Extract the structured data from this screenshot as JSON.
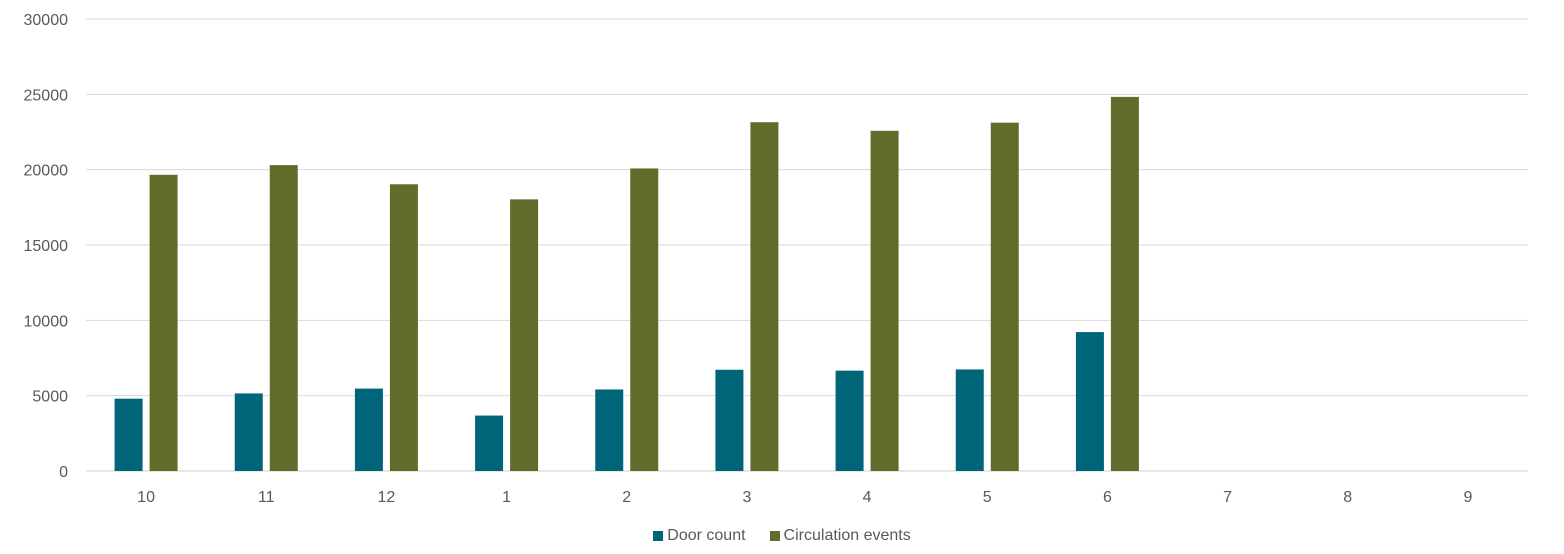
{
  "chart_data": {
    "type": "bar",
    "title": "",
    "xlabel": "",
    "ylabel": "",
    "categories": [
      "10",
      "11",
      "12",
      "1",
      "2",
      "3",
      "4",
      "5",
      "6",
      "7",
      "8",
      "9"
    ],
    "series": [
      {
        "name": "Door count",
        "color": "#006579",
        "values": [
          4800,
          5150,
          5470,
          3680,
          5410,
          6720,
          6660,
          6740,
          9220,
          null,
          null,
          null
        ]
      },
      {
        "name": "Circulation events",
        "color": "#636B2A",
        "values": [
          19660,
          20300,
          19030,
          18030,
          20080,
          23150,
          22580,
          23120,
          24830,
          null,
          null,
          null
        ]
      }
    ],
    "ylim": [
      0,
      30000
    ],
    "yticks": [
      "0",
      "5000",
      "10000",
      "15000",
      "20000",
      "25000",
      "30000"
    ],
    "grid": true,
    "legend_position": "bottom"
  },
  "legend": {
    "door_count": "Door count",
    "circulation_events": "Circulation events"
  }
}
